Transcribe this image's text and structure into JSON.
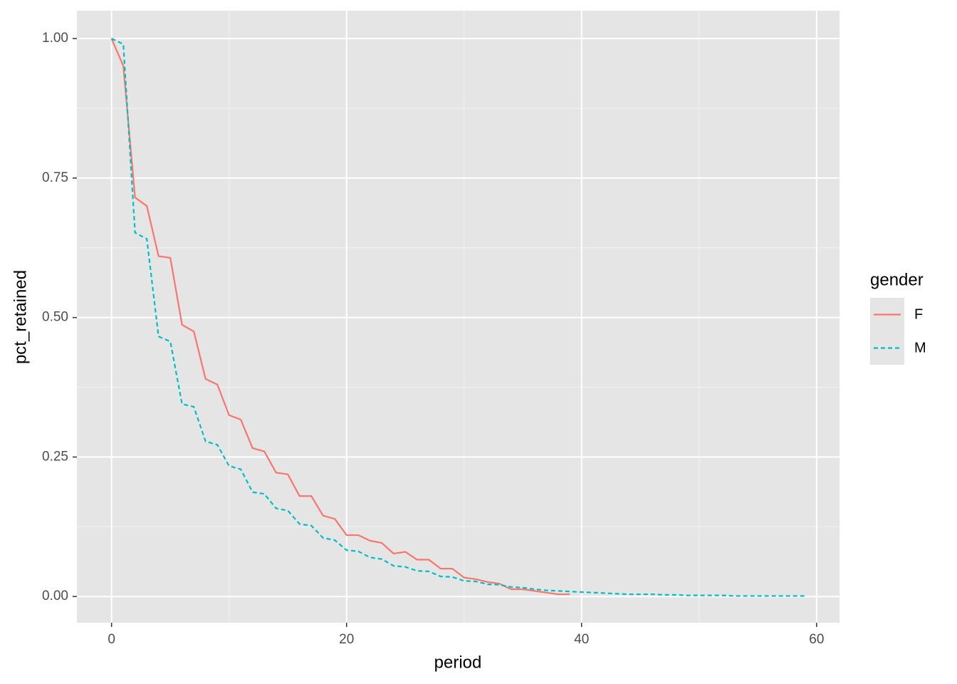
{
  "chart_data": {
    "type": "line",
    "x_label": "period",
    "y_label": "pct_retained",
    "legend_title": "gender",
    "legend": "right",
    "grid": true,
    "xlim": [
      -2.95,
      61.95
    ],
    "ylim": [
      -0.047,
      1.05
    ],
    "xticks": [
      0,
      20,
      40,
      60
    ],
    "x_minor_ticks": [
      10,
      30,
      50
    ],
    "yticks": [
      {
        "value": 0,
        "label": "0.00"
      },
      {
        "value": 0.25,
        "label": "0.25"
      },
      {
        "value": 0.5,
        "label": "0.50"
      },
      {
        "value": 0.75,
        "label": "0.75"
      },
      {
        "value": 1,
        "label": "1.00"
      }
    ],
    "y_minor_ticks": [
      0.125,
      0.375,
      0.625,
      0.875
    ],
    "series": [
      {
        "name": "F",
        "color": "#f8766d",
        "dash": "solid",
        "x": [
          0,
          1,
          2,
          3,
          4,
          5,
          6,
          7,
          8,
          9,
          10,
          11,
          12,
          13,
          14,
          15,
          16,
          17,
          18,
          19,
          20,
          21,
          22,
          23,
          24,
          25,
          26,
          27,
          28,
          29,
          30,
          31,
          32,
          33,
          34,
          35,
          36,
          37,
          38,
          39
        ],
        "values": [
          1.0,
          0.951,
          0.715,
          0.7,
          0.61,
          0.607,
          0.487,
          0.475,
          0.39,
          0.38,
          0.325,
          0.317,
          0.266,
          0.26,
          0.222,
          0.219,
          0.18,
          0.18,
          0.145,
          0.139,
          0.11,
          0.11,
          0.1,
          0.096,
          0.077,
          0.08,
          0.066,
          0.066,
          0.05,
          0.05,
          0.034,
          0.031,
          0.026,
          0.023,
          0.013,
          0.013,
          0.01,
          0.007,
          0.004,
          0.004
        ]
      },
      {
        "name": "M",
        "color": "#00bfc4",
        "dash": "dashed",
        "x": [
          0,
          1,
          2,
          3,
          4,
          5,
          6,
          7,
          8,
          9,
          10,
          11,
          12,
          13,
          14,
          15,
          16,
          17,
          18,
          19,
          20,
          21,
          22,
          23,
          24,
          25,
          26,
          27,
          28,
          29,
          30,
          31,
          32,
          33,
          34,
          35,
          36,
          37,
          38,
          39,
          40,
          41,
          42,
          43,
          44,
          45,
          46,
          47,
          48,
          49,
          50,
          51,
          52,
          53,
          54,
          55,
          56,
          57,
          58,
          59
        ],
        "values": [
          1.0,
          0.99,
          0.652,
          0.641,
          0.466,
          0.457,
          0.345,
          0.34,
          0.278,
          0.272,
          0.234,
          0.228,
          0.187,
          0.184,
          0.158,
          0.154,
          0.13,
          0.127,
          0.105,
          0.101,
          0.083,
          0.081,
          0.07,
          0.067,
          0.055,
          0.053,
          0.046,
          0.045,
          0.036,
          0.035,
          0.028,
          0.027,
          0.022,
          0.021,
          0.017,
          0.016,
          0.013,
          0.011,
          0.01,
          0.009,
          0.008,
          0.007,
          0.006,
          0.005,
          0.004,
          0.004,
          0.004,
          0.003,
          0.003,
          0.002,
          0.002,
          0.002,
          0.002,
          0.001,
          0.001,
          0.001,
          0.001,
          0.001,
          0.001,
          0.001
        ]
      }
    ]
  }
}
